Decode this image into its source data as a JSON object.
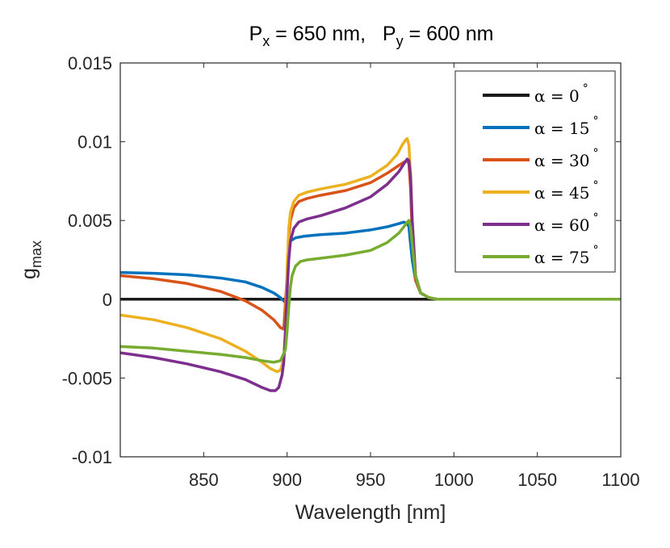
{
  "chart_data": {
    "type": "line",
    "title": {
      "p1": "P",
      "s1": "x",
      "r1": " = 650 nm,   ",
      "p2": "P",
      "s2": "y",
      "r2": " = 600 nm"
    },
    "xlabel": "Wavelength [nm]",
    "ylabel": {
      "base": "g",
      "sub": "max"
    },
    "xlim": [
      800,
      1100
    ],
    "ylim": [
      -0.01,
      0.015
    ],
    "xticks": [
      850,
      900,
      950,
      1000,
      1050,
      1100
    ],
    "xtick_labels": [
      "850",
      "900",
      "950",
      "1000",
      "1050",
      "1100"
    ],
    "yticks": [
      -0.01,
      -0.005,
      0,
      0.005,
      0.01,
      0.015
    ],
    "ytick_labels": [
      "-0.01",
      "-0.005",
      "0",
      "0.005",
      "0.01",
      "0.015"
    ],
    "legend_position": "top-right",
    "series": [
      {
        "name": "α = 0°",
        "label_prefix": "α = 0",
        "label_suffix": "°",
        "color": "#1a1a1a",
        "x": [
          800,
          850,
          900,
          950,
          975,
          985,
          1000,
          1100
        ],
        "y": [
          0,
          0,
          0,
          0,
          0,
          0,
          0,
          0
        ]
      },
      {
        "name": "α = 15°",
        "label_prefix": "α = 15",
        "label_suffix": "°",
        "color": "#0072BD",
        "x": [
          800,
          820,
          840,
          860,
          875,
          885,
          892,
          896,
          899,
          900,
          901,
          902,
          905,
          910,
          920,
          935,
          950,
          960,
          967,
          970,
          972,
          973,
          974,
          975,
          977,
          980,
          985,
          990,
          1000,
          1100
        ],
        "y": [
          0.0017,
          0.00165,
          0.00155,
          0.00135,
          0.0011,
          0.00075,
          0.0004,
          0.0001,
          -0.0002,
          0.001,
          0.003,
          0.0037,
          0.0039,
          0.004,
          0.0041,
          0.0042,
          0.0044,
          0.0046,
          0.0048,
          0.0049,
          0.0048,
          0.0046,
          0.0035,
          0.0025,
          0.0012,
          0.0004,
          0.0001,
          0,
          0,
          0
        ]
      },
      {
        "name": "α = 30°",
        "label_prefix": "α = 30",
        "label_suffix": "°",
        "color": "#D95319",
        "x": [
          800,
          820,
          840,
          860,
          875,
          885,
          892,
          896,
          898,
          900,
          901,
          902,
          904,
          907,
          912,
          920,
          935,
          950,
          960,
          967,
          970,
          972,
          973,
          974,
          975,
          977,
          980,
          985,
          990,
          1000,
          1100
        ],
        "y": [
          0.0015,
          0.0013,
          0.001,
          0.0005,
          -0.0001,
          -0.0007,
          -0.0013,
          -0.0018,
          -0.0019,
          0.0015,
          0.004,
          0.005,
          0.0058,
          0.0062,
          0.0064,
          0.0066,
          0.0069,
          0.0074,
          0.008,
          0.0085,
          0.0087,
          0.0088,
          0.0086,
          0.007,
          0.004,
          0.0012,
          0.0004,
          0.0001,
          0,
          0,
          0
        ]
      },
      {
        "name": "α = 45°",
        "label_prefix": "α = 45",
        "label_suffix": "°",
        "color": "#EDB120",
        "x": [
          800,
          820,
          840,
          860,
          875,
          885,
          890,
          894,
          896,
          898,
          899,
          900,
          901,
          902,
          904,
          907,
          912,
          920,
          935,
          950,
          960,
          966,
          969,
          971,
          972,
          973,
          974,
          975,
          977,
          980,
          985,
          990,
          1000,
          1100
        ],
        "y": [
          -0.001,
          -0.0013,
          -0.0018,
          -0.0025,
          -0.0033,
          -0.004,
          -0.0044,
          -0.0046,
          -0.0045,
          -0.0038,
          -0.002,
          0.002,
          0.0045,
          0.0055,
          0.0062,
          0.0066,
          0.0068,
          0.007,
          0.0073,
          0.0078,
          0.0085,
          0.0092,
          0.0098,
          0.0101,
          0.0102,
          0.0098,
          0.008,
          0.005,
          0.0015,
          0.0004,
          0.0001,
          0,
          0,
          0
        ]
      },
      {
        "name": "α = 60°",
        "label_prefix": "α = 60",
        "label_suffix": "°",
        "color": "#7E2F8E",
        "x": [
          800,
          820,
          840,
          860,
          875,
          885,
          890,
          893,
          895,
          897,
          898,
          899,
          900,
          901,
          902,
          904,
          907,
          912,
          920,
          935,
          950,
          960,
          967,
          970,
          972,
          973,
          974,
          975,
          977,
          980,
          985,
          990,
          1000,
          1100
        ],
        "y": [
          -0.0034,
          -0.0037,
          -0.0041,
          -0.0046,
          -0.0051,
          -0.0056,
          -0.0058,
          -0.0058,
          -0.0056,
          -0.0048,
          -0.004,
          -0.002,
          0.0005,
          0.0025,
          0.0037,
          0.0045,
          0.0049,
          0.0051,
          0.0053,
          0.0058,
          0.0065,
          0.0073,
          0.0081,
          0.0086,
          0.0089,
          0.0088,
          0.0078,
          0.005,
          0.0015,
          0.0004,
          0.0001,
          0,
          0,
          0
        ]
      },
      {
        "name": "α = 75°",
        "label_prefix": "α = 75",
        "label_suffix": "°",
        "color": "#77AC30",
        "x": [
          800,
          820,
          840,
          860,
          875,
          885,
          892,
          896,
          899,
          900,
          901,
          902,
          903,
          905,
          908,
          912,
          920,
          935,
          950,
          960,
          967,
          970,
          972,
          973,
          974,
          975,
          977,
          980,
          985,
          990,
          1000,
          1100
        ],
        "y": [
          -0.003,
          -0.0031,
          -0.0033,
          -0.0035,
          -0.0037,
          -0.0039,
          -0.004,
          -0.0039,
          -0.0032,
          -0.002,
          -0.0005,
          0.0008,
          0.0015,
          0.0021,
          0.0024,
          0.0025,
          0.0026,
          0.0028,
          0.0031,
          0.0036,
          0.0042,
          0.0046,
          0.0049,
          0.005,
          0.0046,
          0.0035,
          0.0015,
          0.0004,
          0.0001,
          0,
          0,
          0
        ]
      }
    ]
  }
}
